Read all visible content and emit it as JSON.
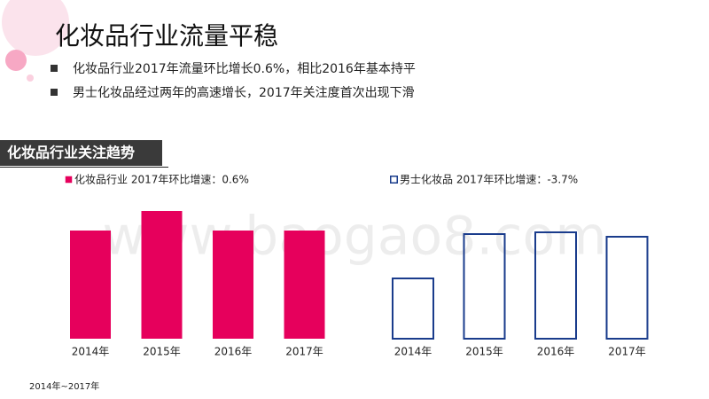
{
  "header": {
    "title": "化妆品行业流量平稳",
    "bullets": [
      "化妆品行业2017年流量环比增长0.6%，相比2016年基本持平",
      "男士化妆品经过两年的高速增长，2017年关注度首次出现下滑"
    ]
  },
  "section_label": "化妆品行业关注趋势",
  "watermark": "www.baogao8.com",
  "footnote": "2014年~2017年",
  "chart_data": [
    {
      "type": "bar",
      "categories": [
        "2014年",
        "2015年",
        "2016年",
        "2017年"
      ],
      "series": [
        {
          "name": "化妆品行业 2017年环比增速：0.6%",
          "color": "#e6005c",
          "filled": true,
          "values": [
            122,
            144,
            122,
            122
          ]
        }
      ]
    },
    {
      "type": "bar",
      "categories": [
        "2014年",
        "2015年",
        "2016年",
        "2017年"
      ],
      "series": [
        {
          "name": "男士化妆品 2017年环比增速：-3.7%",
          "color": "#1a3c8c",
          "filled": false,
          "values": [
            68,
            118,
            120,
            115
          ]
        }
      ]
    }
  ]
}
